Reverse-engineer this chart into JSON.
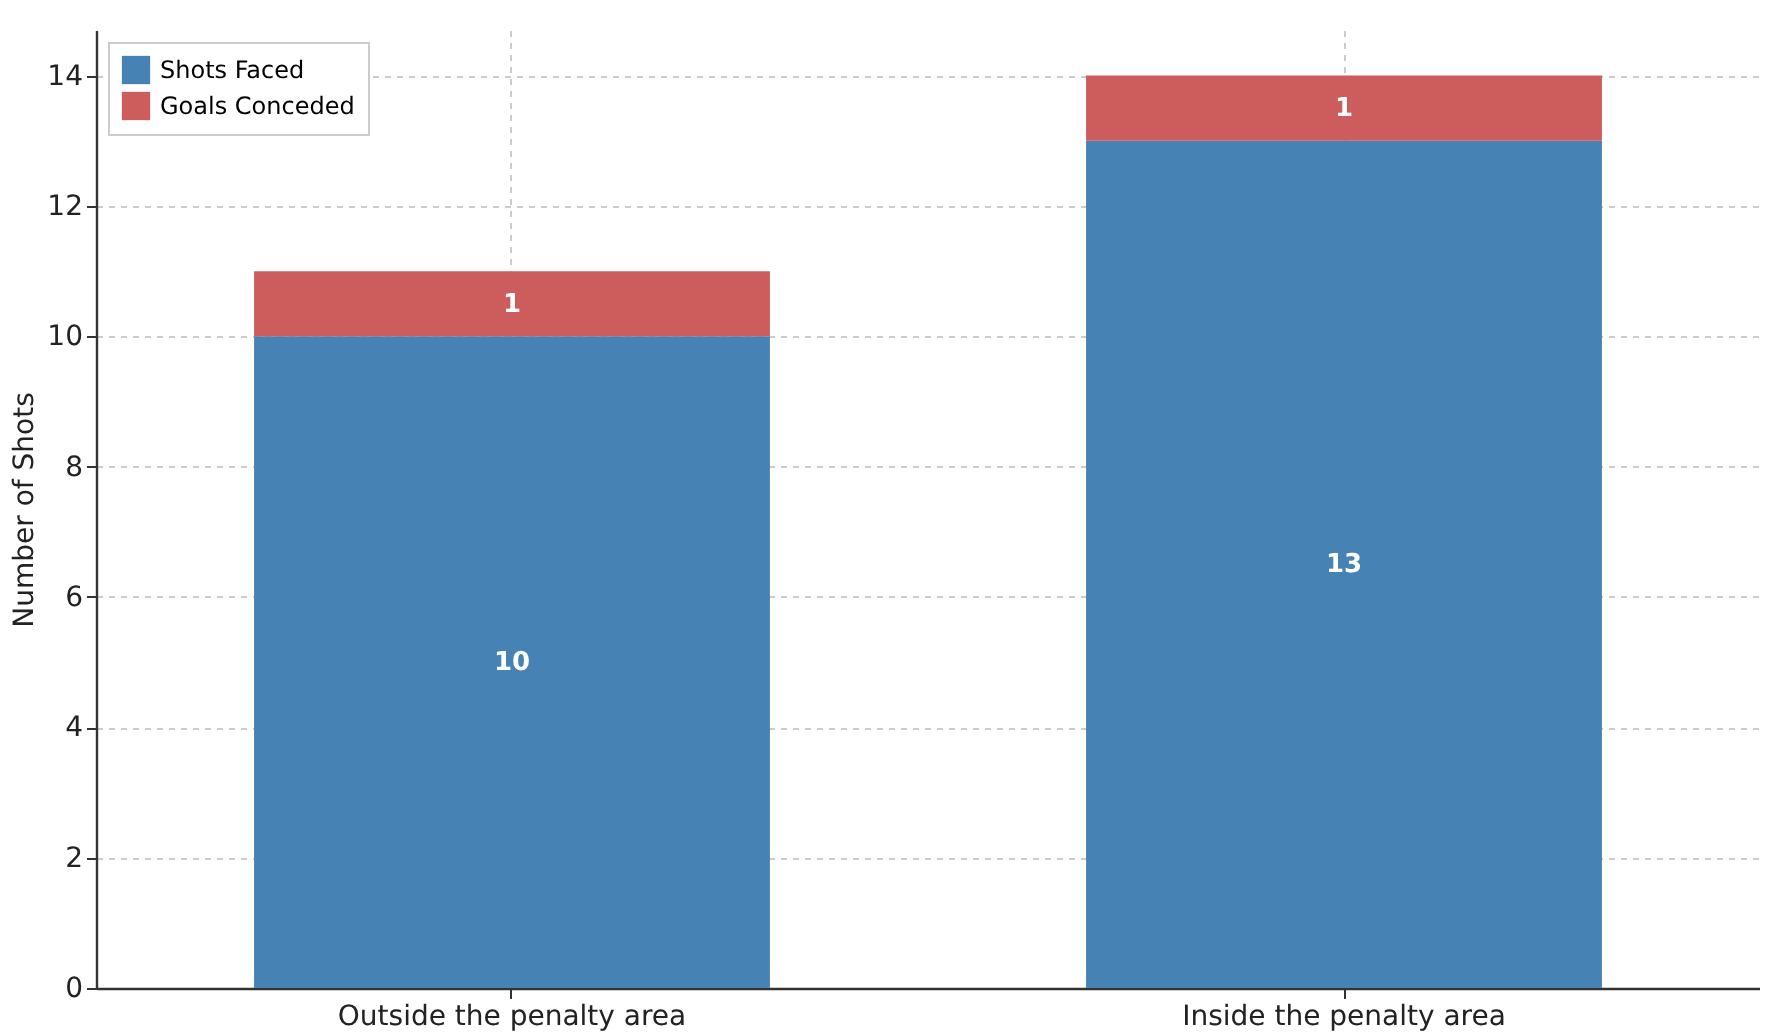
{
  "chart_data": {
    "type": "bar",
    "stacked": true,
    "ylabel": "Number of Shots",
    "categories": [
      "Outside the penalty area",
      "Inside the penalty area"
    ],
    "series": [
      {
        "name": "Shots Faced",
        "color": "#4682b4",
        "values": [
          10,
          13
        ]
      },
      {
        "name": "Goals Conceded",
        "color": "#cd5c5c",
        "values": [
          1,
          1
        ]
      }
    ],
    "ylim": [
      0,
      14.7
    ],
    "yticks": [
      0,
      2,
      4,
      6,
      8,
      10,
      12,
      14
    ],
    "grid": true,
    "legend": "top left",
    "data_labels": true
  }
}
